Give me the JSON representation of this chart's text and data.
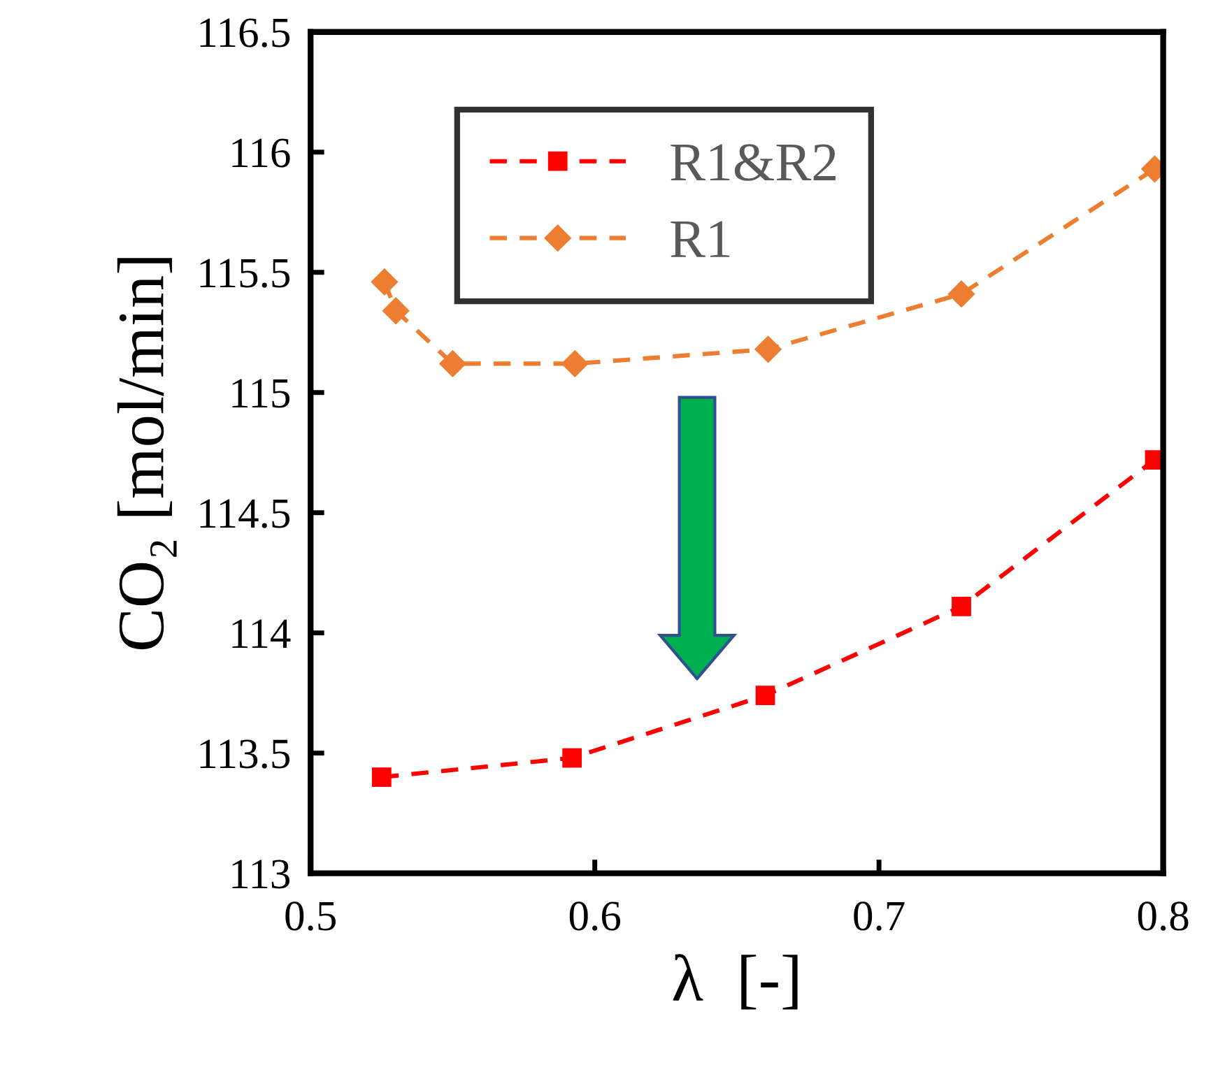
{
  "chart_data": {
    "type": "line",
    "xlabel": "λ  [-]",
    "ylabel": "CO₂ [mol/min]",
    "xlim": [
      0.5,
      0.8
    ],
    "xticks": [
      0.5,
      0.6,
      0.7,
      0.8
    ],
    "ylim": [
      113,
      116.5
    ],
    "yticks": [
      113,
      113.5,
      114,
      114.5,
      115,
      115.5,
      116,
      116.5
    ],
    "grid": false,
    "legend": "top left",
    "line_style": "dashed",
    "series": [
      {
        "name": "R1&R2",
        "color": "#ff0000",
        "marker": "square",
        "x": [
          0.525,
          0.592,
          0.66,
          0.729,
          0.797
        ],
        "values": [
          113.4,
          113.48,
          113.74,
          114.11,
          114.72
        ]
      },
      {
        "name": "R1",
        "color": "#ed7d31",
        "marker": "diamond",
        "x": [
          0.526,
          0.53,
          0.55,
          0.593,
          0.661,
          0.729,
          0.797
        ],
        "values": [
          115.46,
          115.34,
          115.12,
          115.12,
          115.18,
          115.41,
          115.93
        ]
      }
    ]
  }
}
